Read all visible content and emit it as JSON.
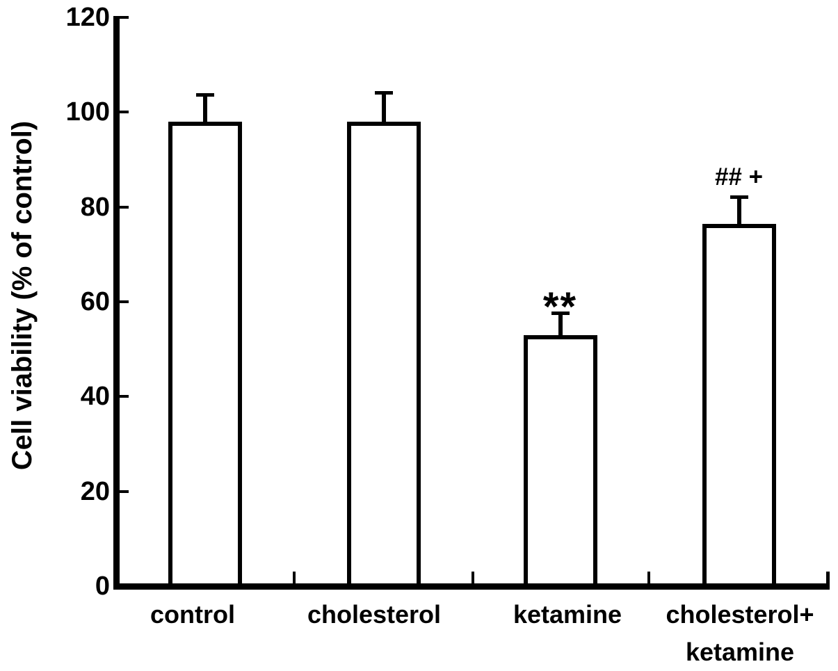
{
  "chart_data": {
    "type": "bar",
    "title": "",
    "xlabel": "",
    "ylabel": "Cell viability (% of control)",
    "ylim": [
      0,
      120
    ],
    "yticks": [
      0,
      20,
      40,
      60,
      80,
      100,
      120
    ],
    "grid": false,
    "error_bars": "upper-only-with-caps",
    "categories": [
      "control",
      "cholesterol",
      "ketamine",
      "cholesterol+ketamine"
    ],
    "categories_lines": [
      [
        "control"
      ],
      [
        "cholesterol"
      ],
      [
        "ketamine"
      ],
      [
        "cholesterol+",
        "ketamine"
      ]
    ],
    "values": [
      98,
      98,
      53,
      76.5
    ],
    "errors": [
      6,
      6.5,
      5,
      6
    ],
    "annotations": [
      "",
      "",
      "**",
      "## +"
    ],
    "bar_fill": "#ffffff",
    "ink_color": "#000000"
  }
}
